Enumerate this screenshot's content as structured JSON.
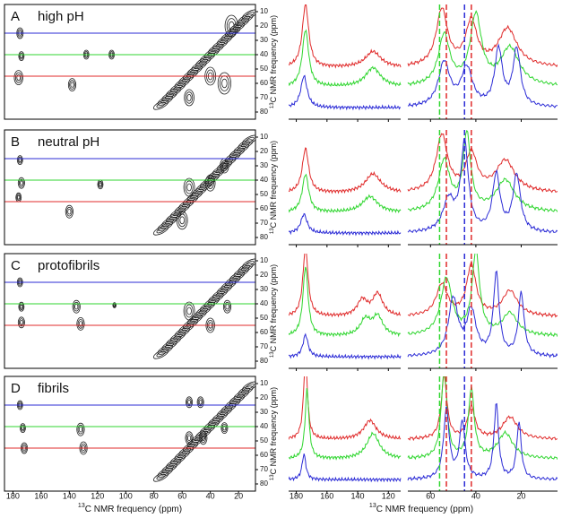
{
  "figure": {
    "x_label_isotope": "13",
    "x_label": "C NMR frequency (ppm)",
    "xlim_2d": [
      186,
      8
    ],
    "xticks_2d": [
      180,
      160,
      140,
      120,
      100,
      80,
      60,
      40,
      20
    ],
    "ylim_2d": [
      5,
      85
    ],
    "yticks": [
      10,
      20,
      30,
      40,
      50,
      60,
      70,
      80
    ],
    "xlim_1d_left": [
      185,
      112
    ],
    "xticks_1d_left": [
      180,
      160,
      140,
      120
    ],
    "xlim_1d_right": [
      70,
      4
    ],
    "xticks_1d_right": [
      60,
      40,
      20
    ],
    "slice_lines": [
      {
        "ppm": 25,
        "color": "#2b2bd6"
      },
      {
        "ppm": 40,
        "color": "#2fd62f"
      },
      {
        "ppm": 55,
        "color": "#e02b2b"
      }
    ],
    "dashed_lines": [
      {
        "ppm": 56,
        "color": "#2fd62f"
      },
      {
        "ppm": 53,
        "color": "#e02b2b"
      },
      {
        "ppm": 45,
        "color": "#2b2bd6"
      },
      {
        "ppm": 42,
        "color": "#e02b2b"
      }
    ],
    "panels": [
      {
        "letter": "A",
        "title": "high pH",
        "peaks": [
          [
            175,
            25,
            6
          ],
          [
            174,
            41,
            5
          ],
          [
            176,
            56,
            8
          ],
          [
            138,
            61,
            7
          ],
          [
            128,
            40,
            5
          ],
          [
            110,
            40,
            5
          ],
          [
            30,
            60,
            12
          ],
          [
            40,
            55,
            10
          ],
          [
            25,
            20,
            12
          ],
          [
            55,
            70,
            9
          ]
        ],
        "traces": [
          {
            "color": "#e02b2b",
            "peaks": [
              [
                174,
                1.0,
                2.5
              ],
              [
                130,
                0.25,
                6
              ],
              [
                55,
                0.9,
                3
              ],
              [
                42,
                0.7,
                3
              ],
              [
                26,
                0.6,
                5
              ]
            ]
          },
          {
            "color": "#2fd62f",
            "peaks": [
              [
                174,
                0.9,
                2.5
              ],
              [
                130,
                0.3,
                6
              ],
              [
                54,
                0.8,
                3
              ],
              [
                40,
                1.1,
                3
              ],
              [
                25,
                0.6,
                5
              ]
            ]
          },
          {
            "color": "#2b2bd6",
            "peaks": [
              [
                175,
                0.5,
                2.5
              ],
              [
                54,
                0.7,
                3
              ],
              [
                44,
                0.6,
                3
              ],
              [
                30,
                0.9,
                2
              ],
              [
                22,
                0.9,
                2
              ]
            ]
          }
        ]
      },
      {
        "letter": "B",
        "title": "neutral pH",
        "peaks": [
          [
            175,
            26,
            5
          ],
          [
            174,
            42,
            6
          ],
          [
            176,
            52,
            5
          ],
          [
            140,
            62,
            7
          ],
          [
            118,
            43,
            5
          ],
          [
            55,
            45,
            10
          ],
          [
            40,
            42,
            9
          ],
          [
            60,
            68,
            10
          ],
          [
            30,
            30,
            8
          ]
        ],
        "traces": [
          {
            "color": "#e02b2b",
            "peaks": [
              [
                174,
                0.7,
                2.5
              ],
              [
                130,
                0.3,
                6
              ],
              [
                55,
                0.9,
                3
              ],
              [
                42,
                0.6,
                3
              ],
              [
                27,
                0.5,
                5
              ]
            ]
          },
          {
            "color": "#2fd62f",
            "peaks": [
              [
                174,
                0.6,
                2.5
              ],
              [
                132,
                0.25,
                6
              ],
              [
                54,
                0.8,
                3
              ],
              [
                44,
                1.2,
                2
              ],
              [
                27,
                0.5,
                5
              ]
            ]
          },
          {
            "color": "#2b2bd6",
            "peaks": [
              [
                175,
                0.3,
                2.5
              ],
              [
                52,
                0.5,
                3
              ],
              [
                45,
                1.4,
                2
              ],
              [
                31,
                0.9,
                2
              ],
              [
                22,
                0.9,
                2
              ]
            ]
          }
        ]
      },
      {
        "letter": "C",
        "title": "protofibrils",
        "peaks": [
          [
            175,
            25,
            5
          ],
          [
            174,
            42,
            5
          ],
          [
            174,
            53,
            6
          ],
          [
            135,
            42,
            7
          ],
          [
            132,
            54,
            7
          ],
          [
            108,
            41,
            3
          ],
          [
            55,
            45,
            10
          ],
          [
            40,
            55,
            8
          ],
          [
            28,
            42,
            7
          ]
        ],
        "traces": [
          {
            "color": "#e02b2b",
            "peaks": [
              [
                174,
                1.1,
                2
              ],
              [
                137,
                0.25,
                4
              ],
              [
                127,
                0.35,
                4
              ],
              [
                55,
                0.5,
                3
              ],
              [
                42,
                0.8,
                2.5
              ],
              [
                25,
                0.4,
                4
              ]
            ]
          },
          {
            "color": "#2fd62f",
            "peaks": [
              [
                174,
                1.1,
                2
              ],
              [
                135,
                0.25,
                4
              ],
              [
                127,
                0.3,
                4
              ],
              [
                53,
                0.9,
                3
              ],
              [
                40,
                1.3,
                2
              ],
              [
                25,
                0.35,
                4
              ]
            ]
          },
          {
            "color": "#2b2bd6",
            "peaks": [
              [
                174,
                0.35,
                2
              ],
              [
                50,
                0.9,
                2.5
              ],
              [
                42,
                0.7,
                2.5
              ],
              [
                31,
                1.3,
                1.5
              ],
              [
                20,
                1.0,
                1.5
              ]
            ]
          }
        ]
      },
      {
        "letter": "D",
        "title": "fibrils",
        "peaks": [
          [
            175,
            25,
            5
          ],
          [
            173,
            41,
            5
          ],
          [
            172,
            55,
            6
          ],
          [
            132,
            42,
            7
          ],
          [
            130,
            55,
            7
          ],
          [
            55,
            23,
            6
          ],
          [
            47,
            23,
            6
          ],
          [
            55,
            48,
            7
          ],
          [
            45,
            48,
            7
          ],
          [
            30,
            41,
            6
          ]
        ],
        "traces": [
          {
            "color": "#e02b2b",
            "peaks": [
              [
                174,
                1.3,
                1.5
              ],
              [
                132,
                0.3,
                5
              ],
              [
                54,
                1.0,
                1.5
              ],
              [
                42,
                0.5,
                2
              ],
              [
                25,
                0.35,
                4
              ]
            ]
          },
          {
            "color": "#2fd62f",
            "peaks": [
              [
                173,
                1.1,
                1.5
              ],
              [
                130,
                0.4,
                5
              ],
              [
                54,
                1.4,
                1.5
              ],
              [
                42,
                1.1,
                1.5
              ],
              [
                27,
                0.4,
                4
              ]
            ]
          },
          {
            "color": "#2b2bd6",
            "peaks": [
              [
                175,
                0.4,
                1.5
              ],
              [
                53,
                1.1,
                1.5
              ],
              [
                46,
                0.9,
                1.5
              ],
              [
                31,
                1.2,
                1.2
              ],
              [
                21,
                0.9,
                1.2
              ]
            ]
          }
        ]
      }
    ]
  }
}
